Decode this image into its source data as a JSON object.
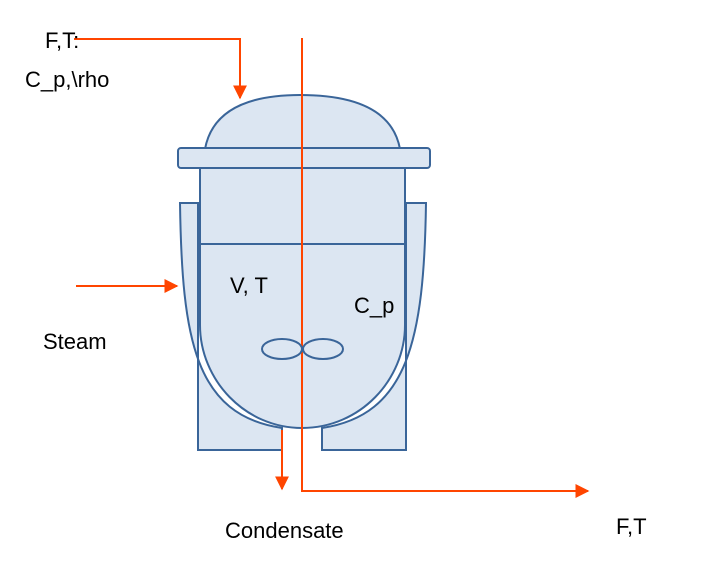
{
  "labels": {
    "feed_flow": "F,T:",
    "feed_props": "C_p,\\rho",
    "vessel_state": "V, T",
    "vessel_cp": "C_p",
    "steam": "Steam",
    "condensate": "Condensate",
    "outlet_flow": "F,T"
  },
  "colors": {
    "vessel_fill": "#dce6f2",
    "vessel_stroke": "#3a6599",
    "stream_arrow": "#ff4500",
    "text": "#000000"
  }
}
